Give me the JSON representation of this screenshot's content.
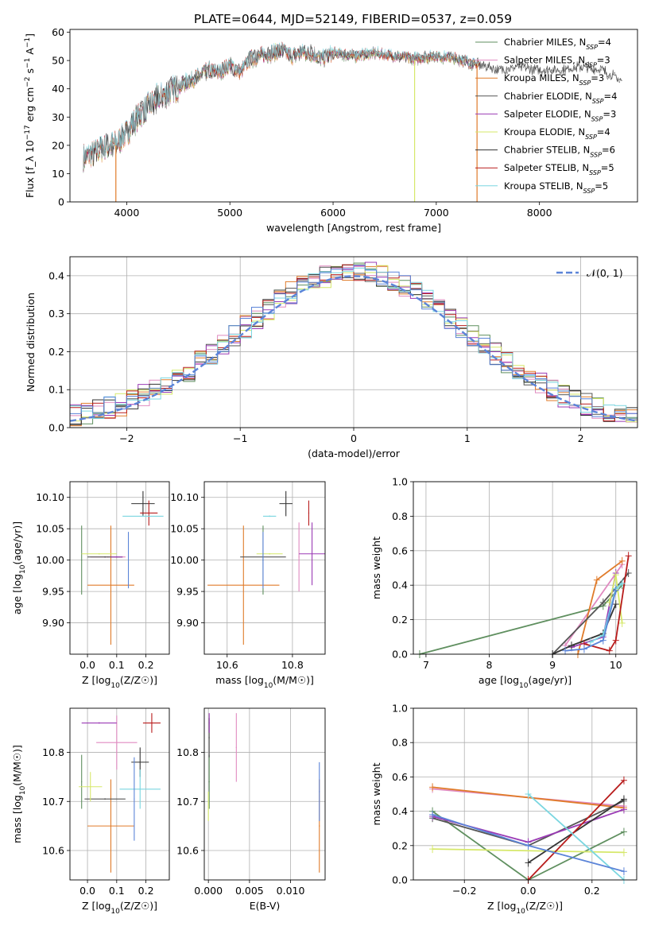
{
  "figure": {
    "title": "PLATE=0644, MJD=52149, FIBERID=0537, z=0.059"
  },
  "colors": {
    "grid": "#b0b0b0",
    "series": [
      "#5f8f5f",
      "#e08ac0",
      "#e07b2a",
      "#555555",
      "#9b3bb5",
      "#d6e86a",
      "#333333",
      "#b81c1c",
      "#7ad6e0"
    ],
    "blue": "#5b84d8"
  },
  "chart_data": [
    {
      "id": "spectrum",
      "type": "line",
      "xlabel": "wavelength [Angstrom, rest frame]",
      "ylabel": "Flux [f_λ 10^-17 erg cm^-2 s^-1 A^-1]",
      "xlim": [
        3450,
        8950
      ],
      "ylim": [
        0,
        61
      ],
      "xticks": [
        4000,
        5000,
        6000,
        7000,
        8000
      ],
      "yticks": [
        0,
        10,
        20,
        30,
        40,
        50,
        60
      ],
      "legend_position": "top-right",
      "series": [
        {
          "name": "Chabrier MILES, N_SSP=4"
        },
        {
          "name": "Salpeter MILES, N_SSP=3"
        },
        {
          "name": "Kroupa MILES, N_SSP=3"
        },
        {
          "name": "Chabrier ELODIE, N_SSP=4"
        },
        {
          "name": "Salpeter ELODIE, N_SSP=3"
        },
        {
          "name": "Kroupa ELODIE, N_SSP=4"
        },
        {
          "name": "Chabrier STELIB, N_SSP=6"
        },
        {
          "name": "Salpeter STELIB, N_SSP=5"
        },
        {
          "name": "Kroupa STELIB, N_SSP=5"
        }
      ],
      "continuum": {
        "x": [
          3580,
          3700,
          3800,
          3900,
          4000,
          4100,
          4200,
          4300,
          4400,
          4500,
          4600,
          4700,
          4800,
          4900,
          5000,
          5100,
          5200,
          5300,
          5400,
          5500,
          5600,
          5700,
          5800,
          5900,
          6000,
          6200,
          6400,
          6600,
          6800,
          7000,
          7200,
          7400,
          7600,
          7800,
          8000,
          8200,
          8400,
          8600,
          8800
        ],
        "y": [
          15,
          17,
          19,
          20,
          24,
          29,
          33,
          36,
          38,
          40,
          42,
          44,
          46,
          45,
          48,
          45,
          50,
          51,
          52,
          53,
          51,
          52,
          52,
          50,
          52,
          51,
          52,
          51,
          50,
          51,
          50,
          48,
          46,
          47,
          46,
          46,
          47,
          46,
          42
        ]
      },
      "drops": [
        {
          "x": 3895,
          "series": "Kroupa MILES"
        },
        {
          "x": 6790,
          "series": "Kroupa ELODIE"
        },
        {
          "x": 7395,
          "series": "Kroupa MILES"
        }
      ]
    },
    {
      "id": "residual-histogram",
      "type": "bar",
      "xlabel": "(data-model)/error",
      "ylabel": "Normed distribution",
      "xlim": [
        -2.5,
        2.5
      ],
      "ylim": [
        0,
        0.45
      ],
      "xticks": [
        -2,
        -1,
        0,
        1,
        2
      ],
      "yticks": [
        0.0,
        0.1,
        0.2,
        0.3,
        0.4
      ],
      "bins": 50,
      "reference": {
        "name": "𝒩(0, 1)",
        "mean": 0,
        "sigma": 1
      },
      "legend_position": "top-right"
    },
    {
      "id": "age-vs-Z",
      "type": "scatter",
      "xlabel": "Z [log10(Z/Z☉)]",
      "ylabel": "age  [log10(age/yr)]",
      "xlim": [
        -0.06,
        0.28
      ],
      "ylim": [
        9.85,
        10.125
      ],
      "xticks": [
        0.0,
        0.1,
        0.2
      ],
      "yticks": [
        9.9,
        9.95,
        10.0,
        10.05,
        10.1
      ],
      "points": [
        {
          "series": 0,
          "x": -0.02,
          "y": 10.0,
          "xerr": 0.0,
          "yerr": 0.055
        },
        {
          "series": 1,
          "x": 0.07,
          "y": 10.005,
          "xerr": 0.06,
          "yerr": 0.0
        },
        {
          "series": 2,
          "x": 0.08,
          "y": 9.96,
          "xerr": 0.08,
          "yerr": 0.095
        },
        {
          "series": 3,
          "x": 0.06,
          "y": 10.005,
          "xerr": 0.06,
          "yerr": 0.0
        },
        {
          "series": 4,
          "x": 0.1,
          "y": 10.005,
          "xerr": 0.02,
          "yerr": 0.0
        },
        {
          "series": 5,
          "x": 0.04,
          "y": 10.01,
          "xerr": 0.06,
          "yerr": 0.0
        },
        {
          "series": 6,
          "x": 0.19,
          "y": 10.09,
          "xerr": 0.04,
          "yerr": 0.02
        },
        {
          "series": 7,
          "x": 0.21,
          "y": 10.075,
          "xerr": 0.03,
          "yerr": 0.02
        },
        {
          "series": 8,
          "x": 0.19,
          "y": 10.07,
          "xerr": 0.07,
          "yerr": 0.0
        },
        {
          "series": 9,
          "x": 0.14,
          "y": 10.0,
          "xerr": 0.0,
          "yerr": 0.045
        }
      ]
    },
    {
      "id": "age-vs-mass",
      "type": "scatter",
      "xlabel": "mass [log10(M/M☉)]",
      "ylabel": "",
      "xlim": [
        10.53,
        10.9
      ],
      "ylim": [
        9.85,
        10.125
      ],
      "xticks": [
        10.6,
        10.8
      ],
      "yticks": [
        9.9,
        9.95,
        10.0,
        10.05,
        10.1
      ],
      "points": [
        {
          "series": 0,
          "x": 10.71,
          "y": 10.0,
          "xerr": 0.0,
          "yerr": 0.055
        },
        {
          "series": 1,
          "x": 10.82,
          "y": 10.005,
          "xerr": 0.0,
          "yerr": 0.055
        },
        {
          "series": 2,
          "x": 10.65,
          "y": 9.96,
          "xerr": 0.11,
          "yerr": 0.095
        },
        {
          "series": 3,
          "x": 10.71,
          "y": 10.005,
          "xerr": 0.07,
          "yerr": 0.0
        },
        {
          "series": 4,
          "x": 10.86,
          "y": 10.01,
          "xerr": 0.04,
          "yerr": 0.05
        },
        {
          "series": 5,
          "x": 10.73,
          "y": 10.01,
          "xerr": 0.04,
          "yerr": 0.0
        },
        {
          "series": 6,
          "x": 10.78,
          "y": 10.09,
          "xerr": 0.02,
          "yerr": 0.02
        },
        {
          "series": 7,
          "x": 10.85,
          "y": 10.075,
          "xerr": 0.0,
          "yerr": 0.02
        },
        {
          "series": 8,
          "x": 10.73,
          "y": 10.07,
          "xerr": 0.02,
          "yerr": 0.0
        },
        {
          "series": 9,
          "x": 10.71,
          "y": 10.0,
          "xerr": 0.0,
          "yerr": 0.045
        }
      ]
    },
    {
      "id": "weight-vs-age",
      "type": "line",
      "xlabel": "age  [log10(age/yr)]",
      "ylabel": "mass weight",
      "xlim": [
        6.8,
        10.33
      ],
      "ylim": [
        0,
        1.0
      ],
      "xticks": [
        7,
        8,
        9,
        10
      ],
      "yticks": [
        0.0,
        0.2,
        0.4,
        0.6,
        0.8,
        1.0
      ],
      "series": [
        {
          "x": [
            6.9,
            9.8,
            10.1
          ],
          "y": [
            0.0,
            0.28,
            0.4
          ]
        },
        {
          "x": [
            9.2,
            10.1
          ],
          "y": [
            0.05,
            0.52
          ]
        },
        {
          "x": [
            9.4,
            9.7,
            10.1
          ],
          "y": [
            0.0,
            0.43,
            0.54
          ]
        },
        {
          "x": [
            9.0,
            9.8,
            10.2
          ],
          "y": [
            0.0,
            0.3,
            0.47
          ]
        },
        {
          "x": [
            9.3,
            9.8,
            10.0
          ],
          "y": [
            0.04,
            0.1,
            0.47
          ]
        },
        {
          "x": [
            9.9,
            10.0,
            10.1
          ],
          "y": [
            0.3,
            0.46,
            0.18
          ]
        },
        {
          "x": [
            9.0,
            9.3,
            9.8,
            10.0
          ],
          "y": [
            0.0,
            0.05,
            0.12,
            0.29
          ]
        },
        {
          "x": [
            9.5,
            9.9,
            10.0,
            10.2
          ],
          "y": [
            0.06,
            0.02,
            0.08,
            0.57
          ]
        },
        {
          "x": [
            9.6,
            9.8,
            10.0,
            10.1
          ],
          "y": [
            0.07,
            0.11,
            0.38,
            0.41
          ]
        },
        {
          "x": [
            9.2,
            9.5,
            9.8,
            10.0
          ],
          "y": [
            0.02,
            0.03,
            0.08,
            0.37
          ]
        }
      ]
    },
    {
      "id": "mass-vs-Z",
      "type": "scatter",
      "xlabel": "Z [log10(Z/Z☉)]",
      "ylabel": "mass [log10(M/M☉)]",
      "xlim": [
        -0.06,
        0.28
      ],
      "ylim": [
        10.54,
        10.89
      ],
      "xticks": [
        0.0,
        0.1,
        0.2
      ],
      "yticks": [
        10.6,
        10.7,
        10.8
      ],
      "points": [
        {
          "series": 0,
          "x": -0.02,
          "y": 10.74,
          "xerr": 0.0,
          "yerr": 0.055
        },
        {
          "series": 1,
          "x": 0.1,
          "y": 10.82,
          "xerr": 0.07,
          "yerr": 0.055
        },
        {
          "series": 2,
          "x": 0.08,
          "y": 10.65,
          "xerr": 0.08,
          "yerr": 0.095
        },
        {
          "series": 3,
          "x": 0.06,
          "y": 10.705,
          "xerr": 0.07,
          "yerr": 0.0
        },
        {
          "series": 4,
          "x": 0.04,
          "y": 10.86,
          "xerr": 0.06,
          "yerr": 0.0
        },
        {
          "series": 5,
          "x": 0.01,
          "y": 10.73,
          "xerr": 0.04,
          "yerr": 0.03
        },
        {
          "series": 6,
          "x": 0.18,
          "y": 10.78,
          "xerr": 0.03,
          "yerr": 0.03
        },
        {
          "series": 7,
          "x": 0.22,
          "y": 10.86,
          "xerr": 0.03,
          "yerr": 0.02
        },
        {
          "series": 8,
          "x": 0.18,
          "y": 10.725,
          "xerr": 0.07,
          "yerr": 0.04
        },
        {
          "series": 9,
          "x": 0.16,
          "y": 10.705,
          "xerr": 0.0,
          "yerr": 0.085
        }
      ]
    },
    {
      "id": "mass-vs-ebv",
      "type": "scatter",
      "xlabel": "E(B-V)",
      "ylabel": "",
      "xlim": [
        -0.0005,
        0.0142
      ],
      "ylim": [
        10.54,
        10.89
      ],
      "xticks": [
        0.0,
        0.005,
        0.01
      ],
      "xtick_labels": [
        "0.000",
        "0.005",
        "0.010"
      ],
      "yticks": [
        10.6,
        10.7,
        10.8
      ],
      "points": [
        {
          "series": 0,
          "x": 0.0001,
          "y": 10.74,
          "xerr": 0.0,
          "yerr": 0.055
        },
        {
          "series": 1,
          "x": 0.0034,
          "y": 10.81,
          "xerr": 0.0,
          "yerr": 0.07
        },
        {
          "series": 2,
          "x": 0.0135,
          "y": 10.65,
          "xerr": 0.0,
          "yerr": 0.095
        },
        {
          "series": 3,
          "x": 0.0001,
          "y": 10.83,
          "xerr": 0.0,
          "yerr": 0.04
        },
        {
          "series": 4,
          "x": 0.0001,
          "y": 10.86,
          "xerr": 0.0,
          "yerr": 0.02
        },
        {
          "series": 5,
          "x": 0.0,
          "y": 10.69,
          "xerr": 0.0,
          "yerr": 0.03
        },
        {
          "series": 9,
          "x": 0.0135,
          "y": 10.72,
          "xerr": 0.0,
          "yerr": 0.06
        }
      ]
    },
    {
      "id": "weight-vs-Z",
      "type": "line",
      "xlabel": "Z [log10(Z/Z☉)]",
      "ylabel": "mass weight",
      "xlim": [
        -0.36,
        0.34
      ],
      "ylim": [
        0,
        1.0
      ],
      "xticks": [
        -0.2,
        0.0,
        0.2
      ],
      "yticks": [
        0.0,
        0.2,
        0.4,
        0.6,
        0.8,
        1.0
      ],
      "series": [
        {
          "x": [
            -0.3,
            0.0,
            0.3
          ],
          "y": [
            0.4,
            0.0,
            0.28
          ]
        },
        {
          "x": [
            -0.3,
            0.3
          ],
          "y": [
            0.53,
            0.43
          ]
        },
        {
          "x": [
            -0.3,
            0.3
          ],
          "y": [
            0.54,
            0.42
          ]
        },
        {
          "x": [
            -0.3,
            0.0,
            0.3
          ],
          "y": [
            0.36,
            0.2,
            0.46
          ]
        },
        {
          "x": [
            -0.3,
            0.0,
            0.3
          ],
          "y": [
            0.37,
            0.22,
            0.41
          ]
        },
        {
          "x": [
            -0.3,
            0.3
          ],
          "y": [
            0.18,
            0.16
          ]
        },
        {
          "x": [
            0.0,
            0.3
          ],
          "y": [
            0.1,
            0.47
          ]
        },
        {
          "x": [
            0.0,
            0.3
          ],
          "y": [
            0.0,
            0.58
          ]
        },
        {
          "x": [
            0.0,
            0.3
          ],
          "y": [
            0.5,
            0.0
          ]
        },
        {
          "x": [
            -0.3,
            0.0,
            0.3
          ],
          "y": [
            0.38,
            0.2,
            0.05
          ]
        }
      ]
    }
  ]
}
